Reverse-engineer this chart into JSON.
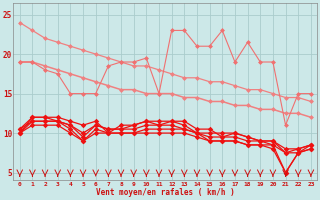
{
  "x": [
    0,
    1,
    2,
    3,
    4,
    5,
    6,
    7,
    8,
    9,
    10,
    11,
    12,
    13,
    14,
    15,
    16,
    17,
    18,
    19,
    20,
    21,
    22,
    23
  ],
  "line1": [
    24.0,
    23.0,
    22.0,
    21.5,
    21.0,
    20.5,
    20.0,
    19.5,
    19.0,
    18.5,
    18.5,
    18.0,
    17.5,
    17.0,
    17.0,
    16.5,
    16.5,
    16.0,
    15.5,
    15.5,
    15.0,
    14.5,
    14.5,
    14.0
  ],
  "line2": [
    19.0,
    19.0,
    18.5,
    18.0,
    17.5,
    17.0,
    16.5,
    16.0,
    15.5,
    15.5,
    15.0,
    15.0,
    15.0,
    14.5,
    14.5,
    14.0,
    14.0,
    13.5,
    13.5,
    13.0,
    13.0,
    12.5,
    12.5,
    12.0
  ],
  "line3": [
    19.0,
    19.0,
    18.0,
    17.5,
    15.0,
    15.0,
    15.0,
    18.5,
    19.0,
    19.0,
    19.5,
    15.0,
    23.0,
    23.0,
    21.0,
    21.0,
    23.0,
    19.0,
    21.5,
    19.0,
    19.0,
    11.0,
    15.0,
    15.0
  ],
  "line4": [
    10.0,
    12.0,
    12.0,
    12.0,
    11.5,
    11.0,
    11.5,
    10.0,
    11.0,
    11.0,
    11.5,
    11.5,
    11.5,
    11.5,
    10.5,
    10.5,
    9.5,
    10.0,
    9.5,
    9.0,
    9.0,
    8.0,
    8.0,
    8.5
  ],
  "line5": [
    10.5,
    12.0,
    12.0,
    11.5,
    11.0,
    9.5,
    11.0,
    10.5,
    10.5,
    11.0,
    11.5,
    11.0,
    11.5,
    11.0,
    10.0,
    10.0,
    10.0,
    10.0,
    9.5,
    9.0,
    9.0,
    7.5,
    8.0,
    8.5
  ],
  "line6": [
    10.5,
    11.5,
    11.5,
    11.5,
    11.0,
    10.0,
    11.0,
    10.5,
    10.5,
    10.5,
    11.0,
    11.0,
    11.0,
    10.5,
    10.0,
    9.5,
    9.5,
    9.5,
    9.0,
    9.0,
    8.5,
    7.5,
    7.5,
    8.0
  ],
  "line7": [
    10.0,
    11.5,
    11.5,
    11.5,
    10.5,
    9.0,
    10.5,
    10.0,
    10.0,
    10.0,
    10.5,
    10.5,
    10.5,
    10.5,
    10.0,
    9.0,
    9.0,
    9.0,
    8.5,
    8.5,
    8.0,
    5.0,
    7.5,
    8.0
  ],
  "line8": [
    10.0,
    11.0,
    11.0,
    11.0,
    10.0,
    9.0,
    10.0,
    10.0,
    10.0,
    10.0,
    10.0,
    10.0,
    10.0,
    10.0,
    9.5,
    9.0,
    9.0,
    9.0,
    8.5,
    8.5,
    8.5,
    5.0,
    7.5,
    8.5
  ],
  "background_color": "#cce8e8",
  "grid_color": "#aacccc",
  "light_color": "#f08080",
  "mid_color": "#f07070",
  "dark_color": "#ee1111",
  "xlabel": "Vent moyen/en rafales ( km/h )",
  "yticks": [
    5,
    10,
    15,
    20,
    25
  ],
  "xticks": [
    0,
    1,
    2,
    3,
    4,
    5,
    6,
    7,
    8,
    9,
    10,
    11,
    12,
    13,
    14,
    15,
    16,
    17,
    18,
    19,
    20,
    21,
    22,
    23
  ],
  "xlim": [
    -0.5,
    23.5
  ],
  "ylim": [
    4.0,
    26.5
  ]
}
